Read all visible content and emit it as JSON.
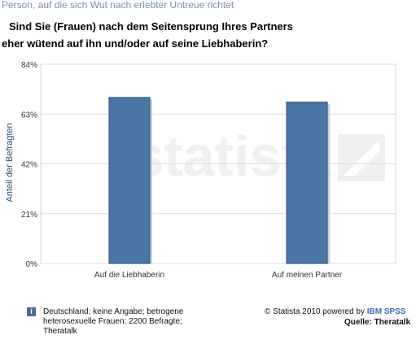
{
  "breadcrumb": "Person, auf die sich Wut nach erlebter Untreue richtet",
  "title_line1": "Sind Sie (Frauen) nach dem Seitensprung Ihres Partners",
  "title_line2": "eher wütend auf ihn und/oder auf seine Liebhaberin?",
  "watermark": "statista",
  "footer": {
    "note": "Deutschland; keine Angabe; betrogene heterosexuelle Frauen; 2200 Befragte; Theratalk",
    "credit_prefix": "© Statista 2010 powered by ",
    "credit_brand": "IBM SPSS",
    "source": "Quelle: Theratalk"
  },
  "colors": {
    "bar": "#4a76a6",
    "bar_dark": "#2c4e74",
    "axis_text": "#333333"
  },
  "chart_data": {
    "type": "bar",
    "categories": [
      "Auf die Liebhaberin",
      "Auf meinen Partner"
    ],
    "values": [
      70,
      68
    ],
    "ylabel": "Anteil der Befragten",
    "yticks": [
      "0%",
      "21%",
      "42%",
      "63%",
      "84%"
    ],
    "ylim": [
      0,
      84
    ],
    "grid": true
  }
}
